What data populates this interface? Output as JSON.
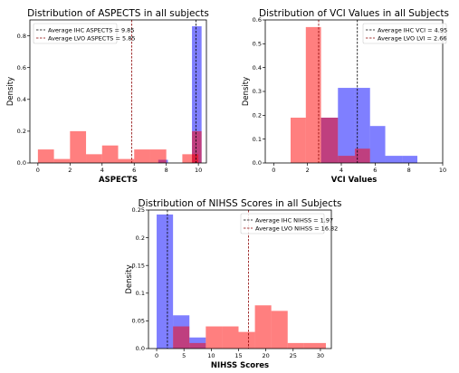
{
  "chart_data": [
    {
      "type": "histogram",
      "title": "Distribution of ASPECTS in all subjects",
      "xlabel": "ASPECTS",
      "ylabel": "Density",
      "xlim": [
        -0.5,
        10.5
      ],
      "ylim": [
        0,
        0.9
      ],
      "xticks": [
        0,
        2,
        4,
        6,
        8,
        10
      ],
      "yticks": [
        0.0,
        0.2,
        0.4,
        0.6,
        0.8
      ],
      "legend_position": "top-left",
      "series": [
        {
          "name": "Average IHC ASPECTS = 9.85",
          "color": "#0000ff",
          "bins": [
            [
              7.5,
              8.1,
              0.02
            ],
            [
              9.6,
              10.2,
              0.86
            ]
          ],
          "mean": 9.85,
          "mean_line_color": "#000000"
        },
        {
          "name": "Average LVO ASPECTS = 5.85",
          "color": "#ff0000",
          "bins": [
            [
              0,
              1,
              0.085
            ],
            [
              1,
              2,
              0.025
            ],
            [
              2,
              3,
              0.2
            ],
            [
              3,
              4,
              0.055
            ],
            [
              4,
              5,
              0.11
            ],
            [
              5,
              6,
              0.025
            ],
            [
              6,
              7,
              0.085
            ],
            [
              7,
              8,
              0.085
            ],
            [
              9,
              10,
              0.055
            ],
            [
              9.6,
              10.2,
              0.2
            ]
          ],
          "mean": 5.85,
          "mean_line_color": "#8b0000"
        }
      ]
    },
    {
      "type": "histogram",
      "title": "Distribution of VCI Values in all Subjects",
      "xlabel": "VCI Values",
      "ylabel": "Density",
      "xlim": [
        -0.5,
        10
      ],
      "ylim": [
        0,
        0.6
      ],
      "xticks": [
        0,
        2,
        4,
        6,
        8,
        10
      ],
      "yticks": [
        0.0,
        0.1,
        0.2,
        0.3,
        0.4,
        0.5,
        0.6
      ],
      "legend_position": "top-right",
      "series": [
        {
          "name": "Average IHC VCI = 4.95",
          "color": "#0000ff",
          "bins": [
            [
              2.8,
              3.8,
              0.19
            ],
            [
              3.8,
              4.8,
              0.315
            ],
            [
              4.8,
              5.7,
              0.315
            ],
            [
              5.7,
              6.6,
              0.155
            ],
            [
              6.6,
              7.6,
              0.03
            ],
            [
              7.6,
              8.5,
              0.03
            ]
          ],
          "mean": 4.95,
          "mean_line_color": "#000000"
        },
        {
          "name": "Average LVO LVI = 2.66",
          "color": "#ff0000",
          "bins": [
            [
              1,
              1.9,
              0.19
            ],
            [
              1.9,
              2.8,
              0.57
            ],
            [
              2.8,
              3.8,
              0.19
            ],
            [
              3.8,
              4.8,
              0.03
            ],
            [
              4.8,
              5.7,
              0.06
            ]
          ],
          "mean": 2.66,
          "mean_line_color": "#8b0000"
        }
      ]
    },
    {
      "type": "histogram",
      "title": "Distribution of NIHSS Scores in all Subjects",
      "xlabel": "NIHSS Scores",
      "ylabel": "Density",
      "xlim": [
        -1.5,
        32
      ],
      "ylim": [
        0,
        0.25
      ],
      "xticks": [
        0,
        5,
        10,
        15,
        20,
        25,
        30
      ],
      "yticks": [
        0.0,
        0.05,
        0.1,
        0.15,
        0.2,
        0.25
      ],
      "legend_position": "top-right",
      "series": [
        {
          "name": "Average IHC NIHSS = 1.97",
          "color": "#0000ff",
          "bins": [
            [
              0,
              3,
              0.242
            ],
            [
              3,
              6,
              0.06
            ],
            [
              6,
              9,
              0.02
            ]
          ],
          "mean": 1.97,
          "mean_line_color": "#000000"
        },
        {
          "name": "Average LVO NIHSS = 16.82",
          "color": "#ff0000",
          "bins": [
            [
              3,
              6,
              0.04
            ],
            [
              6,
              9,
              0.01
            ],
            [
              9,
              12,
              0.04
            ],
            [
              12,
              15,
              0.04
            ],
            [
              15,
              18,
              0.03
            ],
            [
              18,
              21,
              0.078
            ],
            [
              21,
              24,
              0.068
            ],
            [
              24,
              27,
              0.01
            ],
            [
              27,
              31,
              0.01
            ]
          ],
          "mean": 16.82,
          "mean_line_color": "#8b0000"
        }
      ]
    }
  ]
}
